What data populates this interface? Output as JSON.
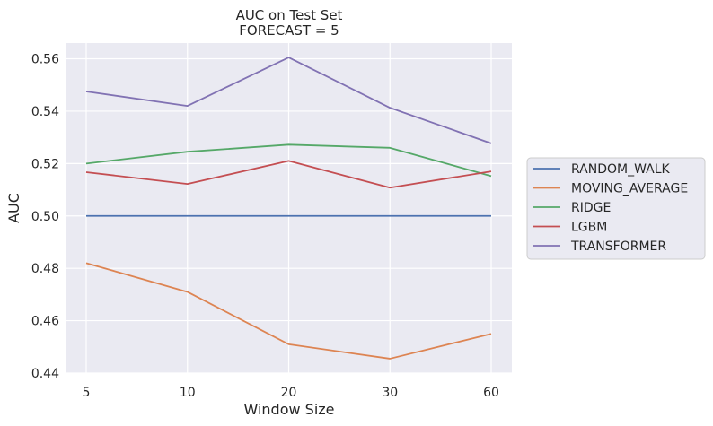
{
  "chart_data": {
    "type": "line",
    "title": "AUC on Test Set",
    "subtitle": "FORECAST = 5",
    "xlabel": "Window Size",
    "ylabel": "AUC",
    "categories": [
      "5",
      "10",
      "20",
      "30",
      "60"
    ],
    "ylim": [
      0.44,
      0.566
    ],
    "yticks": [
      "0.44",
      "0.46",
      "0.48",
      "0.50",
      "0.52",
      "0.54",
      "0.56"
    ],
    "grid": true,
    "legend_position": "right",
    "series": [
      {
        "name": "RANDOM_WALK",
        "color": "#4c72b0",
        "values": [
          0.5,
          0.5,
          0.5,
          0.5,
          0.5
        ]
      },
      {
        "name": "MOVING_AVERAGE",
        "color": "#dd8452",
        "values": [
          0.482,
          0.471,
          0.451,
          0.4455,
          0.455
        ]
      },
      {
        "name": "RIDGE",
        "color": "#55a868",
        "values": [
          0.52,
          0.5245,
          0.5272,
          0.526,
          0.5152
        ]
      },
      {
        "name": "LGBM",
        "color": "#c44e52",
        "values": [
          0.5167,
          0.5122,
          0.521,
          0.5108,
          0.517
        ]
      },
      {
        "name": "TRANSFORMER",
        "color": "#8172b3",
        "values": [
          0.5475,
          0.542,
          0.5605,
          0.5413,
          0.5277
        ]
      }
    ]
  }
}
